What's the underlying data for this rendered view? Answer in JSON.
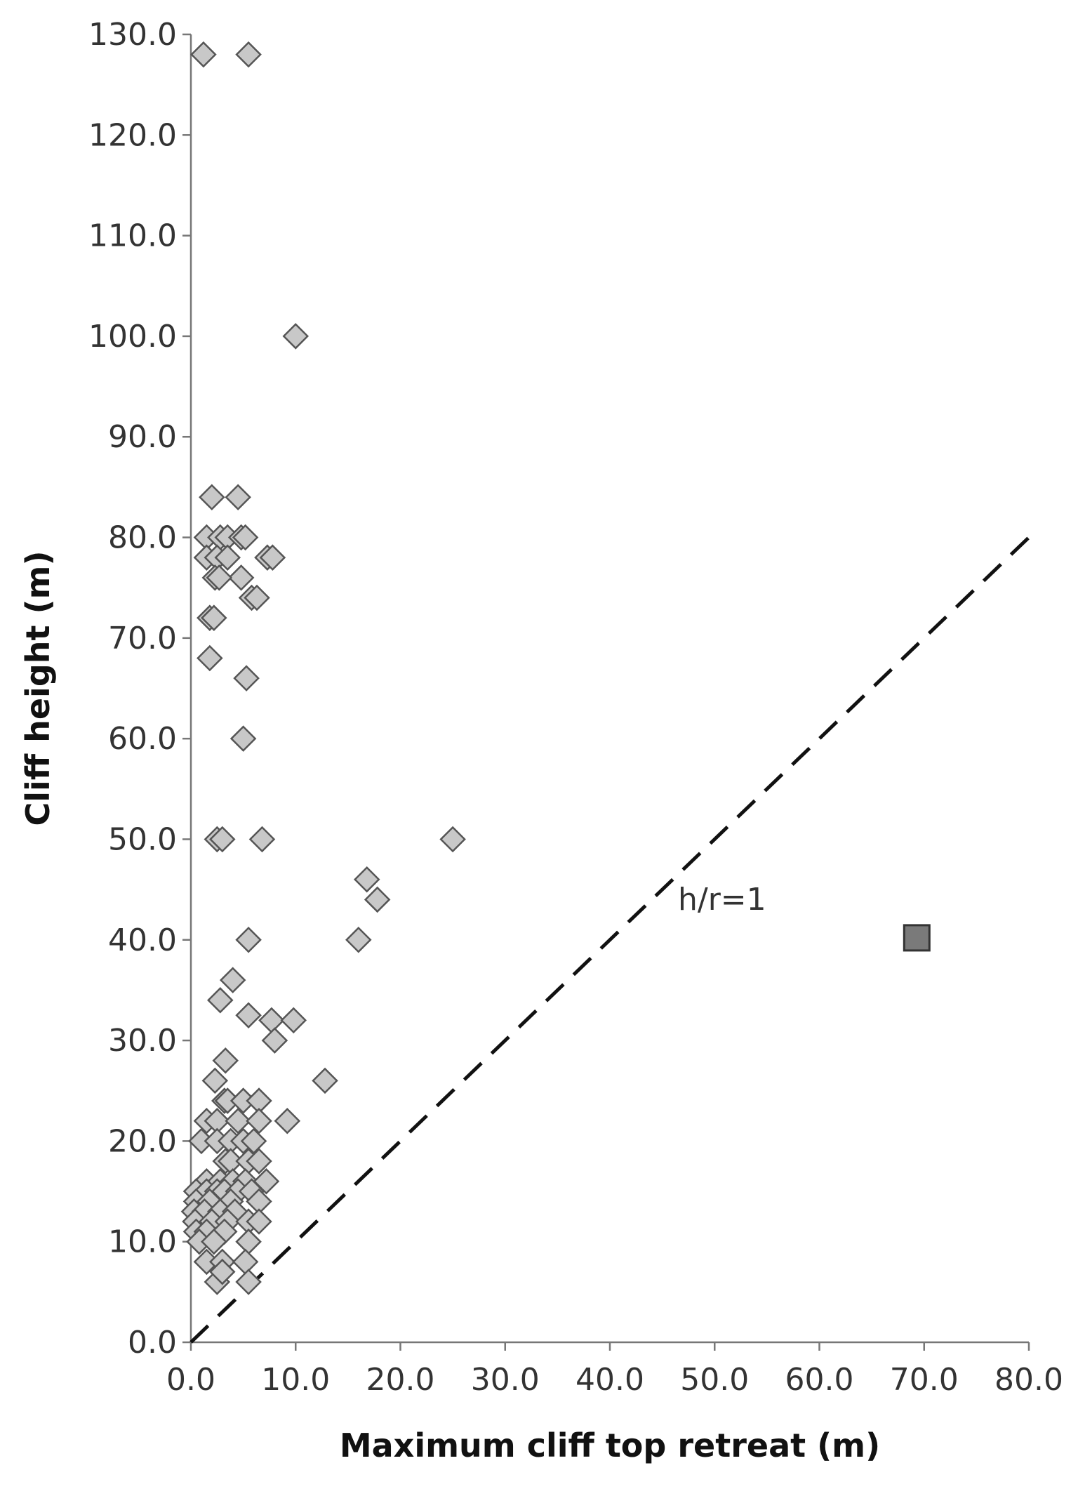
{
  "chart_data": {
    "type": "scatter",
    "title": "",
    "xlabel": "Maximum cliff top retreat (m)",
    "ylabel": "Cliff height (m)",
    "xlim": [
      0,
      80
    ],
    "ylim": [
      0,
      130
    ],
    "x_ticks": [
      "0.0",
      "10.0",
      "20.0",
      "30.0",
      "40.0",
      "50.0",
      "60.0",
      "70.0",
      "80.0"
    ],
    "y_ticks": [
      "0.0",
      "10.0",
      "20.0",
      "30.0",
      "40.0",
      "50.0",
      "60.0",
      "70.0",
      "80.0",
      "90.0",
      "100.0",
      "110.0",
      "120.0",
      "130.0"
    ],
    "grid": false,
    "legend": "none",
    "series": [
      {
        "marker": "diamond",
        "color": "#c8c8c8",
        "points": [
          [
            1.2,
            128
          ],
          [
            5.5,
            128
          ],
          [
            10,
            100
          ],
          [
            2,
            84
          ],
          [
            4.5,
            84
          ],
          [
            1.5,
            80
          ],
          [
            2.8,
            80
          ],
          [
            3.5,
            80
          ],
          [
            4.8,
            80
          ],
          [
            5.2,
            80
          ],
          [
            1.5,
            78
          ],
          [
            2.5,
            78
          ],
          [
            3.5,
            78
          ],
          [
            7.3,
            78
          ],
          [
            7.8,
            78
          ],
          [
            2.3,
            76
          ],
          [
            4.8,
            76
          ],
          [
            2.7,
            76
          ],
          [
            5.8,
            74
          ],
          [
            6.3,
            74
          ],
          [
            1.8,
            72
          ],
          [
            2.2,
            72
          ],
          [
            1.8,
            68
          ],
          [
            5.3,
            66
          ],
          [
            5,
            60
          ],
          [
            2.5,
            50
          ],
          [
            3,
            50
          ],
          [
            6.8,
            50
          ],
          [
            25,
            50
          ],
          [
            16.8,
            46
          ],
          [
            17.8,
            44
          ],
          [
            5.5,
            40
          ],
          [
            16,
            40
          ],
          [
            4,
            36
          ],
          [
            2.8,
            34
          ],
          [
            5.5,
            32.5
          ],
          [
            7.7,
            32
          ],
          [
            9.8,
            32
          ],
          [
            8,
            30
          ],
          [
            3.3,
            28
          ],
          [
            2.3,
            26
          ],
          [
            12.8,
            26
          ],
          [
            3.2,
            24
          ],
          [
            3.5,
            24
          ],
          [
            5,
            24
          ],
          [
            6.5,
            24
          ],
          [
            1.5,
            22
          ],
          [
            2.5,
            22
          ],
          [
            4.5,
            22
          ],
          [
            6.5,
            22
          ],
          [
            9.2,
            22
          ],
          [
            1,
            20
          ],
          [
            2.5,
            20
          ],
          [
            3.8,
            20
          ],
          [
            5,
            20
          ],
          [
            6,
            20
          ],
          [
            3.3,
            18
          ],
          [
            3.8,
            18
          ],
          [
            5.5,
            18
          ],
          [
            6.5,
            18
          ],
          [
            1.5,
            16
          ],
          [
            2.8,
            16
          ],
          [
            4,
            16
          ],
          [
            5.2,
            16
          ],
          [
            7.2,
            16
          ],
          [
            0.5,
            15
          ],
          [
            1.5,
            15
          ],
          [
            2.5,
            15
          ],
          [
            3.2,
            15
          ],
          [
            4.5,
            15
          ],
          [
            5.8,
            15
          ],
          [
            0.5,
            14
          ],
          [
            1.8,
            14
          ],
          [
            3.8,
            14
          ],
          [
            6.5,
            14
          ],
          [
            0.3,
            13
          ],
          [
            1.3,
            13
          ],
          [
            2.8,
            13
          ],
          [
            4.2,
            13
          ],
          [
            0.4,
            12
          ],
          [
            2,
            12
          ],
          [
            3.5,
            12
          ],
          [
            5.5,
            12
          ],
          [
            6.5,
            12
          ],
          [
            0.5,
            11
          ],
          [
            1.5,
            11
          ],
          [
            3.2,
            11
          ],
          [
            0.8,
            10
          ],
          [
            2.2,
            10
          ],
          [
            5.5,
            10
          ],
          [
            1.5,
            8
          ],
          [
            3,
            8
          ],
          [
            5.2,
            8
          ],
          [
            2.5,
            6
          ],
          [
            5.5,
            6
          ],
          [
            3,
            7
          ]
        ]
      },
      {
        "marker": "square",
        "color": "#7a7a7a",
        "points": [
          [
            69.3,
            40.2
          ]
        ]
      }
    ],
    "reference_line": {
      "label": "h/r=1",
      "from": [
        0,
        0
      ],
      "to": [
        80,
        80
      ],
      "style": "dashed"
    },
    "annotations": [
      {
        "text": "h/r=1",
        "x": 46.5,
        "y": 43
      }
    ]
  }
}
